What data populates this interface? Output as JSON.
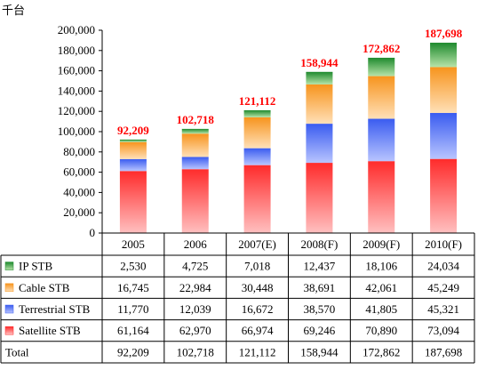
{
  "chart_data": {
    "type": "bar",
    "stacked": true,
    "unit_label": "千台",
    "categories": [
      "2005",
      "2006",
      "2007(E)",
      "2008(F)",
      "2009(F)",
      "2010(F)"
    ],
    "y_ticks": [
      "0",
      "20,000",
      "40,000",
      "60,000",
      "80,000",
      "100,000",
      "120,000",
      "140,000",
      "160,000",
      "180,000",
      "200,000"
    ],
    "ylim": [
      0,
      200000
    ],
    "series": [
      {
        "name": "Satellite STB",
        "values": [
          61164,
          62970,
          66974,
          69246,
          70890,
          73094
        ],
        "labels": [
          "61,164",
          "62,970",
          "66,974",
          "69,246",
          "70,890",
          "73,094"
        ],
        "color": "#ff2b2b",
        "light": "#ffc0c0"
      },
      {
        "name": "Terrestrial STB",
        "values": [
          11770,
          12039,
          16672,
          38570,
          41805,
          45321
        ],
        "labels": [
          "11,770",
          "12,039",
          "16,672",
          "38,570",
          "41,805",
          "45,321"
        ],
        "color": "#3a5cf0",
        "light": "#b8c4ff"
      },
      {
        "name": "Cable STB",
        "values": [
          16745,
          22984,
          30448,
          38691,
          42061,
          45249
        ],
        "labels": [
          "16,745",
          "22,984",
          "30,448",
          "38,691",
          "42,061",
          "45,249"
        ],
        "color": "#f7941d",
        "light": "#ffe0b8"
      },
      {
        "name": "IP STB",
        "values": [
          2530,
          4725,
          7018,
          12437,
          18106,
          24034
        ],
        "labels": [
          "2,530",
          "4,725",
          "7,018",
          "12,437",
          "18,106",
          "24,034"
        ],
        "color": "#1e8a2e",
        "light": "#b7e3a8"
      }
    ],
    "totals": {
      "name": "Total",
      "values": [
        92209,
        102718,
        121112,
        158944,
        172862,
        187698
      ],
      "labels": [
        "92,209",
        "102,718",
        "121,112",
        "158,944",
        "172,862",
        "187,698"
      ],
      "color": "#ff0000"
    },
    "table_row_order": [
      "IP STB",
      "Cable STB",
      "Terrestrial STB",
      "Satellite STB",
      "Total"
    ],
    "grid": false
  }
}
